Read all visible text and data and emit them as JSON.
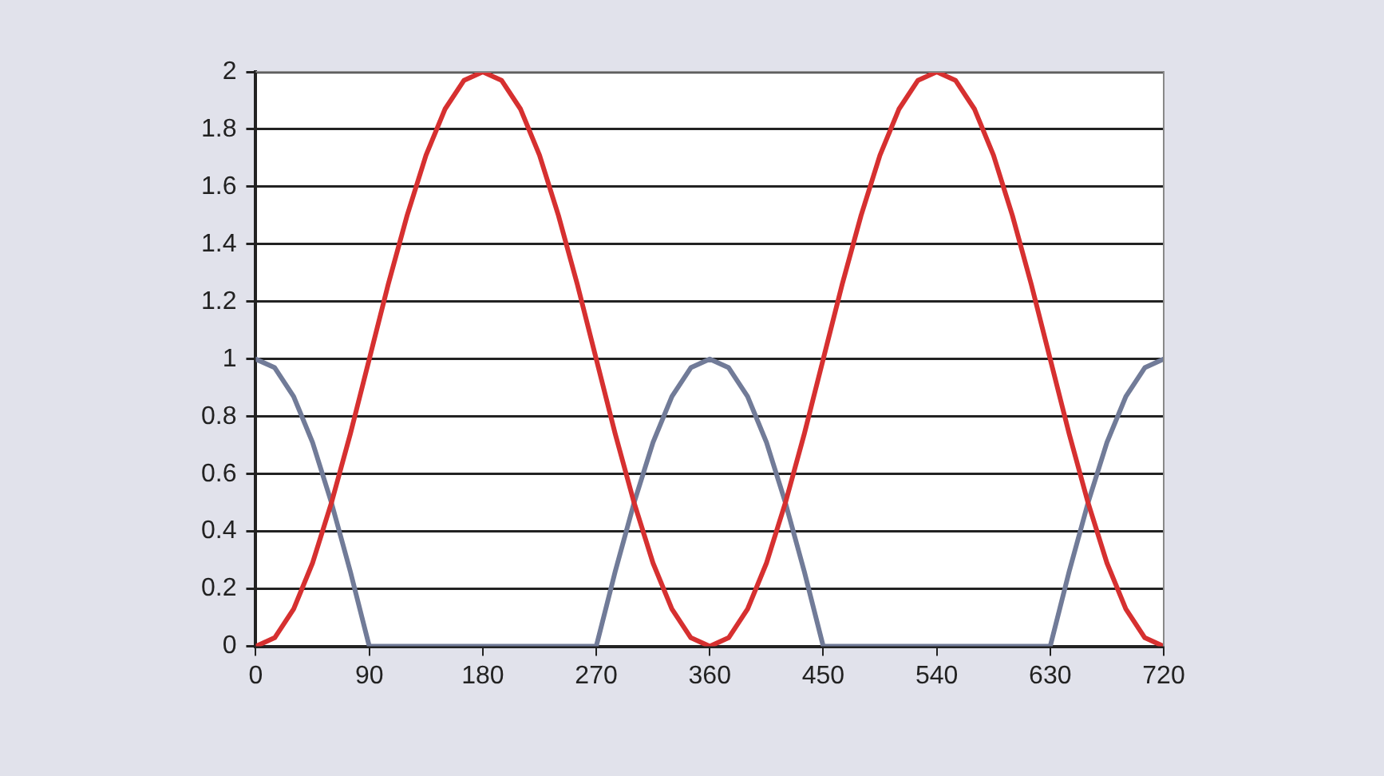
{
  "chart_data": {
    "type": "line",
    "x": [
      0,
      15,
      30,
      45,
      60,
      75,
      90,
      105,
      120,
      135,
      150,
      165,
      180,
      195,
      210,
      225,
      240,
      255,
      270,
      285,
      300,
      315,
      330,
      345,
      360,
      375,
      390,
      405,
      420,
      435,
      450,
      465,
      480,
      495,
      510,
      525,
      540,
      555,
      570,
      585,
      600,
      615,
      630,
      645,
      660,
      675,
      690,
      705,
      720
    ],
    "series": [
      {
        "color": "#d63030",
        "values": [
          0,
          0.03,
          0.13,
          0.29,
          0.5,
          0.74,
          1,
          1.26,
          1.5,
          1.71,
          1.87,
          1.97,
          2,
          1.97,
          1.87,
          1.71,
          1.5,
          1.26,
          1,
          0.74,
          0.5,
          0.29,
          0.13,
          0.03,
          0,
          0.03,
          0.13,
          0.29,
          0.5,
          0.74,
          1,
          1.26,
          1.5,
          1.71,
          1.87,
          1.97,
          2,
          1.97,
          1.87,
          1.71,
          1.5,
          1.26,
          1,
          0.74,
          0.5,
          0.29,
          0.13,
          0.03,
          0
        ]
      },
      {
        "color": "#717b98",
        "values": [
          1,
          0.97,
          0.87,
          0.71,
          0.5,
          0.26,
          0,
          0,
          0,
          0,
          0,
          0,
          0,
          0,
          0,
          0,
          0,
          0,
          0,
          0.26,
          0.5,
          0.71,
          0.87,
          0.97,
          1,
          0.97,
          0.87,
          0.71,
          0.5,
          0.26,
          0,
          0,
          0,
          0,
          0,
          0,
          0,
          0,
          0,
          0,
          0,
          0,
          0,
          0.26,
          0.5,
          0.71,
          0.87,
          0.97,
          1
        ]
      }
    ],
    "xlim": [
      0,
      720
    ],
    "xticks": [
      0,
      90,
      180,
      270,
      360,
      450,
      540,
      630,
      720
    ],
    "ylim": [
      0,
      2
    ],
    "yticks": [
      0,
      0.2,
      0.4,
      0.6,
      0.8,
      1,
      1.2,
      1.4,
      1.6,
      1.8,
      2
    ],
    "grid": "y",
    "legend": false,
    "marker": "none",
    "line_style": "solid"
  }
}
